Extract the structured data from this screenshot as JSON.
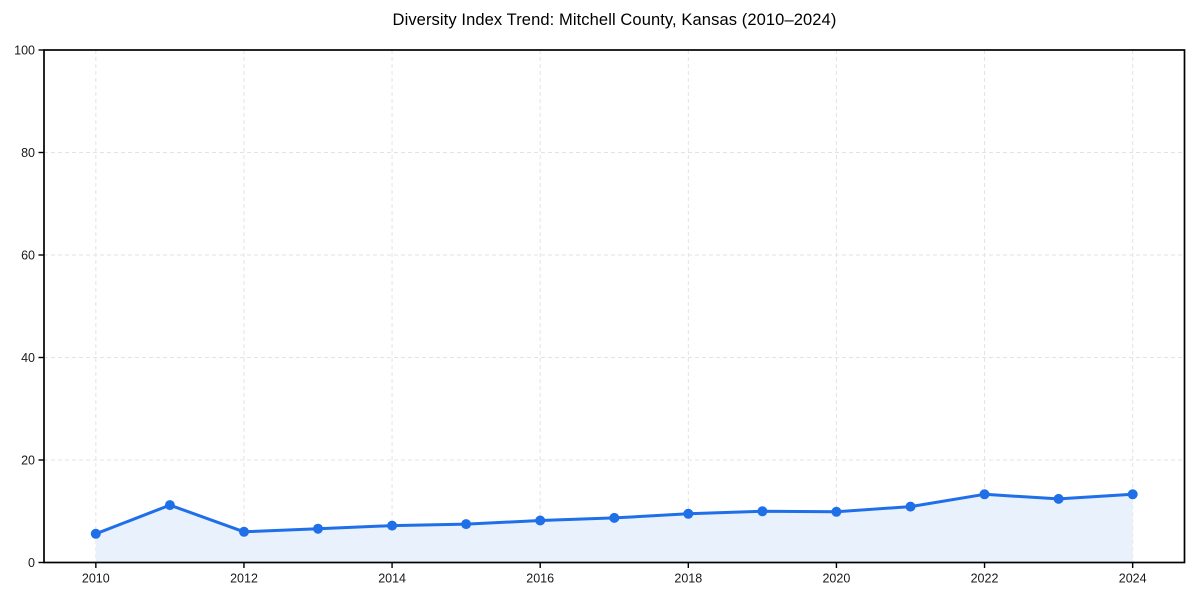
{
  "chart_data": {
    "type": "area",
    "title": "Diversity Index Trend: Mitchell County, Kansas (2010–2024)",
    "xlabel": "",
    "ylabel": "",
    "x": [
      2010,
      2011,
      2012,
      2013,
      2014,
      2015,
      2016,
      2017,
      2018,
      2019,
      2020,
      2021,
      2022,
      2023,
      2024
    ],
    "values": [
      5.6,
      11.2,
      6.0,
      6.6,
      7.2,
      7.5,
      8.2,
      8.7,
      9.5,
      10.0,
      9.9,
      10.9,
      13.3,
      12.4,
      13.3
    ],
    "series_name": "Diversity Index",
    "xticks": [
      2010,
      2012,
      2014,
      2016,
      2018,
      2020,
      2022,
      2024
    ],
    "yticks": [
      0,
      20,
      40,
      60,
      80,
      100
    ],
    "xlim": [
      2009.3,
      2024.7
    ],
    "ylim": [
      0,
      100
    ],
    "grid": true,
    "legend": "none",
    "line_color": "#1e6fe8",
    "fill_color": "#e9f1fc",
    "grid_color": "#e3e3e3",
    "spine_color": "#000000",
    "tick_label_color": "#1a1a1a"
  }
}
